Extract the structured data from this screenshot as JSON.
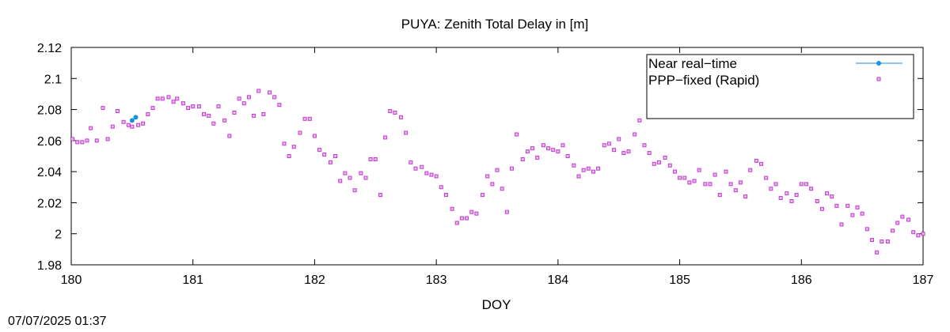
{
  "timestamp": "07/07/2025 01:37",
  "chart_data": {
    "type": "scatter",
    "title": "PUYA: Zenith Total Delay in [m]",
    "xlabel": "DOY",
    "ylabel": "",
    "xlim": [
      180,
      187
    ],
    "ylim": [
      1.98,
      2.12
    ],
    "x_ticks": [
      "180",
      "181",
      "182",
      "183",
      "184",
      "185",
      "186",
      "187"
    ],
    "y_ticks": [
      "1.98",
      "2",
      "2.02",
      "2.04",
      "2.06",
      "2.08",
      "2.1",
      "2.12"
    ],
    "legend_position": "top-right",
    "series": [
      {
        "name": "Near real−time",
        "color": "#1a8fe0",
        "marker": "circle-line",
        "points": [
          [
            180.5,
            2.073
          ],
          [
            180.53,
            2.075
          ]
        ]
      },
      {
        "name": "PPP−fixed (Rapid)",
        "color": "#c23ccf",
        "marker": "square",
        "points": [
          [
            180.01,
            2.061
          ],
          [
            180.05,
            2.059
          ],
          [
            180.09,
            2.059
          ],
          [
            180.13,
            2.06
          ],
          [
            180.16,
            2.068
          ],
          [
            180.21,
            2.06
          ],
          [
            180.26,
            2.081
          ],
          [
            180.3,
            2.061
          ],
          [
            180.34,
            2.069
          ],
          [
            180.38,
            2.079
          ],
          [
            180.43,
            2.072
          ],
          [
            180.47,
            2.07
          ],
          [
            180.5,
            2.069
          ],
          [
            180.55,
            2.07
          ],
          [
            180.59,
            2.071
          ],
          [
            180.63,
            2.077
          ],
          [
            180.67,
            2.081
          ],
          [
            180.71,
            2.087
          ],
          [
            180.75,
            2.087
          ],
          [
            180.8,
            2.088
          ],
          [
            180.84,
            2.085
          ],
          [
            180.87,
            2.087
          ],
          [
            180.92,
            2.084
          ],
          [
            180.96,
            2.081
          ],
          [
            181.0,
            2.082
          ],
          [
            181.05,
            2.082
          ],
          [
            181.09,
            2.077
          ],
          [
            181.13,
            2.076
          ],
          [
            181.17,
            2.071
          ],
          [
            181.21,
            2.082
          ],
          [
            181.26,
            2.073
          ],
          [
            181.3,
            2.063
          ],
          [
            181.34,
            2.078
          ],
          [
            181.38,
            2.087
          ],
          [
            181.42,
            2.084
          ],
          [
            181.46,
            2.088
          ],
          [
            181.5,
            2.076
          ],
          [
            181.54,
            2.092
          ],
          [
            181.58,
            2.077
          ],
          [
            181.63,
            2.091
          ],
          [
            181.67,
            2.088
          ],
          [
            181.71,
            2.083
          ],
          [
            181.75,
            2.058
          ],
          [
            181.79,
            2.05
          ],
          [
            181.83,
            2.056
          ],
          [
            181.88,
            2.065
          ],
          [
            181.92,
            2.074
          ],
          [
            181.96,
            2.074
          ],
          [
            182.0,
            2.063
          ],
          [
            182.04,
            2.054
          ],
          [
            182.08,
            2.051
          ],
          [
            182.13,
            2.046
          ],
          [
            182.17,
            2.05
          ],
          [
            182.21,
            2.034
          ],
          [
            182.25,
            2.039
          ],
          [
            182.29,
            2.036
          ],
          [
            182.33,
            2.028
          ],
          [
            182.38,
            2.039
          ],
          [
            182.42,
            2.036
          ],
          [
            182.46,
            2.048
          ],
          [
            182.5,
            2.048
          ],
          [
            182.54,
            2.025
          ],
          [
            182.58,
            2.062
          ],
          [
            182.62,
            2.079
          ],
          [
            182.66,
            2.078
          ],
          [
            182.71,
            2.075
          ],
          [
            182.75,
            2.065
          ],
          [
            182.79,
            2.046
          ],
          [
            182.83,
            2.042
          ],
          [
            182.88,
            2.043
          ],
          [
            182.92,
            2.039
          ],
          [
            182.96,
            2.038
          ],
          [
            183.0,
            2.037
          ],
          [
            183.04,
            2.03
          ],
          [
            183.08,
            2.025
          ],
          [
            183.13,
            2.016
          ],
          [
            183.17,
            2.007
          ],
          [
            183.21,
            2.01
          ],
          [
            183.25,
            2.01
          ],
          [
            183.29,
            2.014
          ],
          [
            183.33,
            2.013
          ],
          [
            183.38,
            2.025
          ],
          [
            183.42,
            2.037
          ],
          [
            183.46,
            2.032
          ],
          [
            183.5,
            2.041
          ],
          [
            183.54,
            2.029
          ],
          [
            183.58,
            2.014
          ],
          [
            183.62,
            2.042
          ],
          [
            183.66,
            2.064
          ],
          [
            183.71,
            2.048
          ],
          [
            183.75,
            2.053
          ],
          [
            183.79,
            2.055
          ],
          [
            183.83,
            2.049
          ],
          [
            183.88,
            2.057
          ],
          [
            183.92,
            2.055
          ],
          [
            183.96,
            2.054
          ],
          [
            184.0,
            2.053
          ],
          [
            184.04,
            2.057
          ],
          [
            184.08,
            2.05
          ],
          [
            184.13,
            2.044
          ],
          [
            184.17,
            2.037
          ],
          [
            184.21,
            2.041
          ],
          [
            184.25,
            2.042
          ],
          [
            184.29,
            2.04
          ],
          [
            184.33,
            2.042
          ],
          [
            184.38,
            2.057
          ],
          [
            184.42,
            2.058
          ],
          [
            184.46,
            2.054
          ],
          [
            184.5,
            2.061
          ],
          [
            184.54,
            2.052
          ],
          [
            184.58,
            2.053
          ],
          [
            184.63,
            2.064
          ],
          [
            184.67,
            2.073
          ],
          [
            184.71,
            2.057
          ],
          [
            184.75,
            2.052
          ],
          [
            184.79,
            2.045
          ],
          [
            184.83,
            2.046
          ],
          [
            184.88,
            2.049
          ],
          [
            184.92,
            2.044
          ],
          [
            184.96,
            2.04
          ],
          [
            185.0,
            2.036
          ],
          [
            185.04,
            2.036
          ],
          [
            185.08,
            2.033
          ],
          [
            185.12,
            2.034
          ],
          [
            185.16,
            2.041
          ],
          [
            185.21,
            2.032
          ],
          [
            185.25,
            2.032
          ],
          [
            185.29,
            2.038
          ],
          [
            185.33,
            2.025
          ],
          [
            185.38,
            2.04
          ],
          [
            185.42,
            2.032
          ],
          [
            185.46,
            2.028
          ],
          [
            185.5,
            2.033
          ],
          [
            185.54,
            2.024
          ],
          [
            185.58,
            2.041
          ],
          [
            185.63,
            2.047
          ],
          [
            185.67,
            2.045
          ],
          [
            185.71,
            2.036
          ],
          [
            185.75,
            2.029
          ],
          [
            185.79,
            2.032
          ],
          [
            185.83,
            2.023
          ],
          [
            185.88,
            2.026
          ],
          [
            185.92,
            2.021
          ],
          [
            185.96,
            2.025
          ],
          [
            186.0,
            2.032
          ],
          [
            186.04,
            2.032
          ],
          [
            186.08,
            2.029
          ],
          [
            186.13,
            2.021
          ],
          [
            186.17,
            2.016
          ],
          [
            186.21,
            2.026
          ],
          [
            186.25,
            2.024
          ],
          [
            186.29,
            2.018
          ],
          [
            186.33,
            2.006
          ],
          [
            186.38,
            2.018
          ],
          [
            186.42,
            2.012
          ],
          [
            186.46,
            2.017
          ],
          [
            186.5,
            2.013
          ],
          [
            186.54,
            2.003
          ],
          [
            186.58,
            1.996
          ],
          [
            186.62,
            1.988
          ],
          [
            186.66,
            1.995
          ],
          [
            186.71,
            1.995
          ],
          [
            186.75,
            2.002
          ],
          [
            186.79,
            2.007
          ],
          [
            186.83,
            2.011
          ],
          [
            186.88,
            2.009
          ],
          [
            186.92,
            2.001
          ],
          [
            186.96,
            1.999
          ],
          [
            187.0,
            2.0
          ]
        ]
      }
    ]
  }
}
